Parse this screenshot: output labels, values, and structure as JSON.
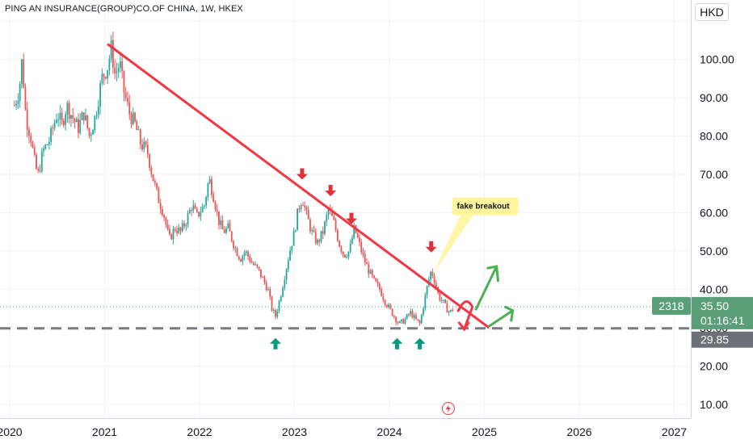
{
  "header": {
    "symbol_title": "PING AN INSURANCE(GROUP)CO.OF CHINA, 1W, HKEX",
    "currency": "HKD"
  },
  "price_tags": {
    "countdown_label": "2318",
    "last_price": "35.50",
    "countdown": "01:16:41",
    "support_price": "29.85"
  },
  "annotation": {
    "text": "fake breakout"
  },
  "colors": {
    "up": "#26a69a",
    "down": "#ef5350",
    "trendline": "#f23645",
    "support_line": "#787b86",
    "tag_green": "#5b9f78",
    "tag_gray": "#6e7079",
    "note_bg": "#fff59d",
    "up_arrow": "#089981",
    "down_arrow": "#e0323c",
    "scenario_green": "#4caf50",
    "scenario_red": "#f23645"
  },
  "chart_data": {
    "type": "candlestick",
    "title": "PING AN INSURANCE(GROUP)CO.OF CHINA, 1W, HKEX",
    "interval": "1W",
    "currency": "HKD",
    "y_ticks": [
      "10.00",
      "20.00",
      "30.00",
      "40.00",
      "50.00",
      "60.00",
      "70.00",
      "80.00",
      "90.00",
      "100.00"
    ],
    "y_tick_values": [
      10,
      20,
      30,
      40,
      50,
      60,
      70,
      80,
      90,
      100
    ],
    "x_ticks": [
      "2020",
      "2021",
      "2022",
      "2023",
      "2024",
      "2025",
      "2026",
      "2027"
    ],
    "x_tick_values": [
      2020,
      2021,
      2022,
      2023,
      2024,
      2025,
      2026,
      2027
    ],
    "ylim": [
      5,
      111
    ],
    "xlim": [
      2020.05,
      2027.25
    ],
    "last_price": 35.5,
    "support_level": 29.85,
    "price_path": [
      [
        2020.05,
        88
      ],
      [
        2020.1,
        92
      ],
      [
        2020.13,
        100
      ],
      [
        2020.17,
        85
      ],
      [
        2020.22,
        80
      ],
      [
        2020.27,
        72
      ],
      [
        2020.3,
        70
      ],
      [
        2020.35,
        76
      ],
      [
        2020.42,
        79
      ],
      [
        2020.5,
        86
      ],
      [
        2020.55,
        83
      ],
      [
        2020.6,
        88
      ],
      [
        2020.66,
        85
      ],
      [
        2020.72,
        82
      ],
      [
        2020.78,
        86
      ],
      [
        2020.84,
        80
      ],
      [
        2020.9,
        85
      ],
      [
        2020.97,
        95
      ],
      [
        2021.03,
        98
      ],
      [
        2021.07,
        103
      ],
      [
        2021.11,
        96
      ],
      [
        2021.16,
        99
      ],
      [
        2021.2,
        92
      ],
      [
        2021.26,
        86
      ],
      [
        2021.32,
        83
      ],
      [
        2021.38,
        78
      ],
      [
        2021.45,
        76
      ],
      [
        2021.5,
        70
      ],
      [
        2021.56,
        64
      ],
      [
        2021.62,
        60
      ],
      [
        2021.68,
        53
      ],
      [
        2021.74,
        56
      ],
      [
        2021.8,
        55
      ],
      [
        2021.86,
        58
      ],
      [
        2021.92,
        62
      ],
      [
        2021.97,
        59
      ],
      [
        2022.05,
        62
      ],
      [
        2022.1,
        69
      ],
      [
        2022.15,
        64
      ],
      [
        2022.2,
        58
      ],
      [
        2022.25,
        55
      ],
      [
        2022.3,
        56
      ],
      [
        2022.37,
        51
      ],
      [
        2022.43,
        48
      ],
      [
        2022.48,
        50
      ],
      [
        2022.55,
        47
      ],
      [
        2022.62,
        45
      ],
      [
        2022.68,
        42
      ],
      [
        2022.72,
        40
      ],
      [
        2022.76,
        35
      ],
      [
        2022.8,
        33
      ],
      [
        2022.85,
        38
      ],
      [
        2022.9,
        44
      ],
      [
        2022.95,
        50
      ],
      [
        2023.0,
        55
      ],
      [
        2023.04,
        61
      ],
      [
        2023.08,
        64
      ],
      [
        2023.12,
        60
      ],
      [
        2023.18,
        55
      ],
      [
        2023.24,
        52
      ],
      [
        2023.3,
        55
      ],
      [
        2023.36,
        61
      ],
      [
        2023.42,
        57
      ],
      [
        2023.47,
        52
      ],
      [
        2023.52,
        49
      ],
      [
        2023.58,
        50
      ],
      [
        2023.63,
        56
      ],
      [
        2023.68,
        52
      ],
      [
        2023.73,
        48
      ],
      [
        2023.78,
        45
      ],
      [
        2023.84,
        42
      ],
      [
        2023.9,
        40
      ],
      [
        2023.95,
        37
      ],
      [
        2024.0,
        35
      ],
      [
        2024.05,
        33
      ],
      [
        2024.1,
        31
      ],
      [
        2024.16,
        32
      ],
      [
        2024.22,
        34
      ],
      [
        2024.28,
        32
      ],
      [
        2024.32,
        31
      ],
      [
        2024.36,
        36
      ],
      [
        2024.4,
        41
      ],
      [
        2024.44,
        45
      ],
      [
        2024.48,
        42
      ],
      [
        2024.52,
        38
      ],
      [
        2024.56,
        37
      ],
      [
        2024.6,
        35
      ],
      [
        2024.64,
        34
      ],
      [
        2024.68,
        35.5
      ]
    ],
    "trendline": {
      "from": [
        2021.03,
        104
      ],
      "to": [
        2025.05,
        30
      ]
    },
    "resistance_touches": [
      2023.08,
      2023.38,
      2023.6,
      2024.44
    ],
    "support_touches": [
      2022.8,
      2024.08,
      2024.32
    ]
  }
}
